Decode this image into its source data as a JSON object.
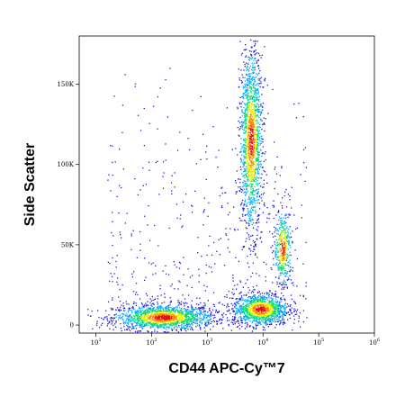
{
  "chart_data": {
    "type": "scatter",
    "plot_style": "pseudocolor density dot plot",
    "xlabel": "CD44 APC-Cy™7",
    "ylabel": "Side Scatter",
    "x_scale": "log",
    "x_range": [
      5,
      1000000
    ],
    "y_range": [
      -5000,
      180000
    ],
    "x_ticks": [
      {
        "value": 10,
        "base": "10",
        "exp": "1"
      },
      {
        "value": 100,
        "base": "10",
        "exp": "2"
      },
      {
        "value": 1000,
        "base": "10",
        "exp": "3"
      },
      {
        "value": 10000,
        "base": "10",
        "exp": "4"
      },
      {
        "value": 100000,
        "base": "10",
        "exp": "5"
      },
      {
        "value": 1000000,
        "base": "10",
        "exp": "6"
      }
    ],
    "y_ticks": [
      {
        "value": 0,
        "label": "0"
      },
      {
        "value": 50000,
        "label": "50K"
      },
      {
        "value": 100000,
        "label": "100K"
      },
      {
        "value": 150000,
        "label": "150K"
      }
    ],
    "density_colors": [
      "#1a1ad6",
      "#00a8ff",
      "#00e070",
      "#f0f000",
      "#ff8800",
      "#e01010"
    ],
    "populations": [
      {
        "name_hidden": true,
        "x_log_center": 2.2,
        "x_log_spread": 0.45,
        "y_center": 5000,
        "y_spread": 4000,
        "weight": 0.3
      },
      {
        "name_hidden": true,
        "x_log_center": 3.95,
        "x_log_spread": 0.25,
        "y_center": 10000,
        "y_spread": 5000,
        "weight": 0.22
      },
      {
        "name_hidden": true,
        "x_log_center": 3.78,
        "x_log_spread": 0.1,
        "y_center": 115000,
        "y_spread": 28000,
        "weight": 0.3
      },
      {
        "name_hidden": true,
        "x_log_center": 4.35,
        "x_log_spread": 0.08,
        "y_center": 48000,
        "y_spread": 12000,
        "weight": 0.08
      }
    ]
  }
}
